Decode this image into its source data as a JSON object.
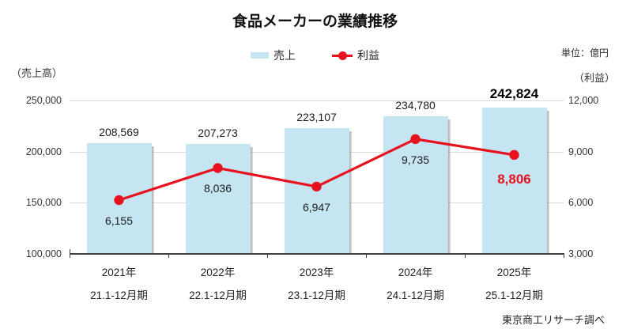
{
  "title": "食品メーカーの業績推移",
  "unit_note": "単位：億円",
  "left_axis_caption": "（売上高）",
  "right_axis_caption": "（利益）",
  "source_note": "東京商工リサーチ調べ",
  "legend": {
    "sales_label": "売上",
    "profit_label": "利益"
  },
  "colors": {
    "bar": "#c5e5f3",
    "line": "#e8111e",
    "grid": "#d9d9d9",
    "axis": "#404040",
    "emphasis": "#e8111e"
  },
  "chart_data": {
    "type": "bar",
    "subtype": "bar-line-combo",
    "title": "食品メーカーの業績推移",
    "unit": "億円",
    "grid": true,
    "legend_position": "top-center",
    "categories": [
      {
        "year": "2021年",
        "period": "21.1-12月期"
      },
      {
        "year": "2022年",
        "period": "22.1-12月期"
      },
      {
        "year": "2023年",
        "period": "23.1-12月期"
      },
      {
        "year": "2024年",
        "period": "24.1-12月期"
      },
      {
        "year": "2025年",
        "period": "25.1-12月期"
      }
    ],
    "series": [
      {
        "name": "売上",
        "type": "bar",
        "axis": "left",
        "values": [
          208569,
          207273,
          223107,
          234780,
          242824
        ],
        "value_labels": [
          "208,569",
          "207,273",
          "223,107",
          "234,780",
          "242,824"
        ]
      },
      {
        "name": "利益",
        "type": "line",
        "axis": "right",
        "values": [
          6155,
          8036,
          6947,
          9735,
          8806
        ],
        "value_labels": [
          "6,155",
          "8,036",
          "6,947",
          "9,735",
          "8,806"
        ]
      }
    ],
    "left_axis": {
      "caption": "（売上高）",
      "min": 100000,
      "max": 250000,
      "tick_values": [
        250000,
        200000,
        150000,
        100000
      ],
      "tick_labels": [
        "250,000",
        "200,000",
        "150,000",
        "100,000"
      ]
    },
    "right_axis": {
      "caption": "（利益）",
      "min": 3000,
      "max": 12000,
      "tick_values": [
        12000,
        9000,
        6000,
        3000
      ],
      "tick_labels": [
        "12,000",
        "9,000",
        "6,000",
        "3,000"
      ]
    },
    "emphasize_last": true
  }
}
